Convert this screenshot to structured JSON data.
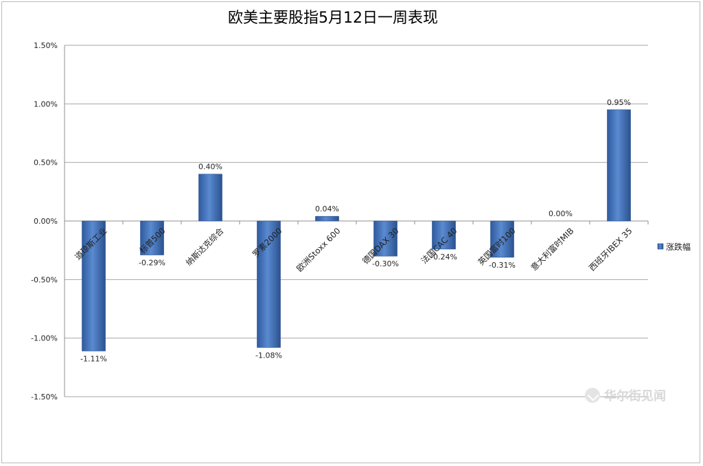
{
  "chart_data": {
    "type": "bar",
    "title": "欧美主要股指5月12日一周表现",
    "categories": [
      "道琼斯工业",
      "标普500",
      "纳斯达克综合",
      "罗素2000",
      "欧洲Stoxx 600",
      "德国DAX 30",
      "法国CAC 40",
      "英国富时100",
      "意大利富时MIB",
      "西班牙IBEX 35"
    ],
    "series": [
      {
        "name": "涨跌幅",
        "values": [
          -1.11,
          -0.29,
          0.4,
          -1.08,
          0.04,
          -0.3,
          -0.24,
          -0.31,
          0.0,
          0.95
        ],
        "labels": [
          "-1.11%",
          "-0.29%",
          "0.40%",
          "-1.08%",
          "0.04%",
          "-0.30%",
          "-0.24%",
          "-0.31%",
          "0.00%",
          "0.95%"
        ]
      }
    ],
    "ylim": [
      -1.5,
      1.5
    ],
    "yticks": [
      "1.50%",
      "1.00%",
      "0.50%",
      "0.00%",
      "-0.50%",
      "-1.00%",
      "-1.50%"
    ],
    "ytick_values": [
      1.5,
      1.0,
      0.5,
      0.0,
      -0.5,
      -1.0,
      -1.5
    ],
    "grid": true,
    "legend_position": "right",
    "bar_color": "#3f6fb5"
  },
  "watermark": "华尔街见闻"
}
